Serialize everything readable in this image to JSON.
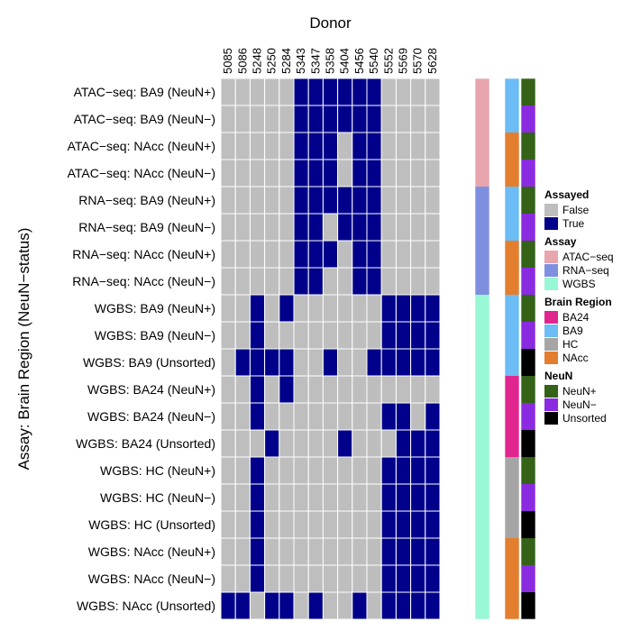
{
  "chart_data": {
    "type": "heatmap",
    "title": "Donor",
    "ylabel": "Assay: Brain Region (NeuN−status)",
    "columns": [
      "5085",
      "5086",
      "5248",
      "5250",
      "5284",
      "5343",
      "5347",
      "5358",
      "5404",
      "5456",
      "5540",
      "5552",
      "5569",
      "5570",
      "5628"
    ],
    "rows": [
      "ATAC−seq: BA9 (NeuN+)",
      "ATAC−seq: BA9 (NeuN−)",
      "ATAC−seq: NAcc (NeuN+)",
      "ATAC−seq: NAcc (NeuN−)",
      "RNA−seq: BA9 (NeuN+)",
      "RNA−seq: BA9 (NeuN−)",
      "RNA−seq: NAcc (NeuN+)",
      "RNA−seq: NAcc (NeuN−)",
      "WGBS: BA9 (NeuN+)",
      "WGBS: BA9 (NeuN−)",
      "WGBS: BA9 (Unsorted)",
      "WGBS: BA24 (NeuN+)",
      "WGBS: BA24 (NeuN−)",
      "WGBS: BA24 (Unsorted)",
      "WGBS: HC (NeuN+)",
      "WGBS: HC (NeuN−)",
      "WGBS: HC (Unsorted)",
      "WGBS: NAcc (NeuN+)",
      "WGBS: NAcc (NeuN−)",
      "WGBS: NAcc (Unsorted)"
    ],
    "values": [
      [
        0,
        0,
        0,
        0,
        0,
        1,
        1,
        1,
        1,
        1,
        1,
        0,
        0,
        0,
        0
      ],
      [
        0,
        0,
        0,
        0,
        0,
        1,
        1,
        1,
        1,
        1,
        1,
        0,
        0,
        0,
        0
      ],
      [
        0,
        0,
        0,
        0,
        0,
        1,
        1,
        1,
        0,
        1,
        1,
        0,
        0,
        0,
        0
      ],
      [
        0,
        0,
        0,
        0,
        0,
        1,
        1,
        1,
        0,
        1,
        1,
        0,
        0,
        0,
        0
      ],
      [
        0,
        0,
        0,
        0,
        0,
        1,
        1,
        1,
        1,
        1,
        1,
        0,
        0,
        0,
        0
      ],
      [
        0,
        0,
        0,
        0,
        0,
        1,
        1,
        0,
        1,
        1,
        1,
        0,
        0,
        0,
        0
      ],
      [
        0,
        0,
        0,
        0,
        0,
        1,
        1,
        1,
        0,
        1,
        1,
        0,
        0,
        0,
        0
      ],
      [
        0,
        0,
        0,
        0,
        0,
        1,
        1,
        0,
        0,
        1,
        1,
        0,
        0,
        0,
        0
      ],
      [
        0,
        0,
        1,
        0,
        1,
        0,
        0,
        0,
        0,
        0,
        0,
        1,
        1,
        1,
        1
      ],
      [
        0,
        0,
        1,
        0,
        0,
        0,
        0,
        0,
        0,
        0,
        0,
        1,
        1,
        1,
        1
      ],
      [
        0,
        1,
        1,
        1,
        1,
        0,
        0,
        1,
        0,
        0,
        1,
        1,
        1,
        1,
        1
      ],
      [
        0,
        0,
        1,
        0,
        1,
        0,
        0,
        0,
        0,
        0,
        0,
        0,
        0,
        0,
        0
      ],
      [
        0,
        0,
        1,
        0,
        0,
        0,
        0,
        0,
        0,
        0,
        0,
        1,
        1,
        0,
        1
      ],
      [
        0,
        0,
        0,
        1,
        0,
        0,
        0,
        0,
        1,
        0,
        0,
        0,
        1,
        1,
        1
      ],
      [
        0,
        0,
        1,
        0,
        0,
        0,
        0,
        0,
        0,
        0,
        0,
        1,
        1,
        1,
        1
      ],
      [
        0,
        0,
        1,
        0,
        0,
        0,
        0,
        0,
        0,
        0,
        0,
        1,
        1,
        1,
        1
      ],
      [
        0,
        0,
        1,
        0,
        0,
        0,
        0,
        0,
        0,
        0,
        0,
        1,
        1,
        1,
        1
      ],
      [
        0,
        0,
        1,
        0,
        0,
        0,
        0,
        0,
        0,
        0,
        0,
        1,
        1,
        1,
        1
      ],
      [
        0,
        0,
        1,
        0,
        0,
        0,
        0,
        0,
        0,
        0,
        0,
        1,
        1,
        1,
        1
      ],
      [
        1,
        1,
        0,
        1,
        1,
        0,
        1,
        0,
        0,
        1,
        0,
        1,
        1,
        1,
        1
      ]
    ],
    "annotations": {
      "assay": [
        "ATAC−seq",
        "ATAC−seq",
        "ATAC−seq",
        "ATAC−seq",
        "RNA−seq",
        "RNA−seq",
        "RNA−seq",
        "RNA−seq",
        "WGBS",
        "WGBS",
        "WGBS",
        "WGBS",
        "WGBS",
        "WGBS",
        "WGBS",
        "WGBS",
        "WGBS",
        "WGBS",
        "WGBS",
        "WGBS"
      ],
      "brain_region": [
        "BA9",
        "BA9",
        "NAcc",
        "NAcc",
        "BA9",
        "BA9",
        "NAcc",
        "NAcc",
        "BA9",
        "BA9",
        "BA9",
        "BA24",
        "BA24",
        "BA24",
        "HC",
        "HC",
        "HC",
        "NAcc",
        "NAcc",
        "NAcc"
      ],
      "neun": [
        "NeuN+",
        "NeuN−",
        "NeuN+",
        "NeuN−",
        "NeuN+",
        "NeuN−",
        "NeuN+",
        "NeuN−",
        "NeuN+",
        "NeuN−",
        "Unsorted",
        "NeuN+",
        "NeuN−",
        "Unsorted",
        "NeuN+",
        "NeuN−",
        "Unsorted",
        "NeuN+",
        "NeuN−",
        "Unsorted"
      ]
    },
    "legend_placement": "right",
    "legends": [
      {
        "title": "Assayed",
        "key": "assayed",
        "items": [
          {
            "label": "False",
            "color": "#bebebe"
          },
          {
            "label": "True",
            "color": "#00008b"
          }
        ]
      },
      {
        "title": "Assay",
        "key": "assay",
        "items": [
          {
            "label": "ATAC−seq",
            "color": "#e8a5ad"
          },
          {
            "label": "RNA−seq",
            "color": "#7f8fe0"
          },
          {
            "label": "WGBS",
            "color": "#98f7d4"
          }
        ]
      },
      {
        "title": "Brain Region",
        "key": "brain_region",
        "items": [
          {
            "label": "BA24",
            "color": "#e0268e"
          },
          {
            "label": "BA9",
            "color": "#6cbcf5"
          },
          {
            "label": "HC",
            "color": "#a5a5a5"
          },
          {
            "label": "NAcc",
            "color": "#e37e2e"
          }
        ]
      },
      {
        "title": "NeuN",
        "key": "neun",
        "items": [
          {
            "label": "NeuN+",
            "color": "#346217"
          },
          {
            "label": "NeuN−",
            "color": "#8a2be2"
          },
          {
            "label": "Unsorted",
            "color": "#000000"
          }
        ]
      }
    ],
    "grid": true
  }
}
